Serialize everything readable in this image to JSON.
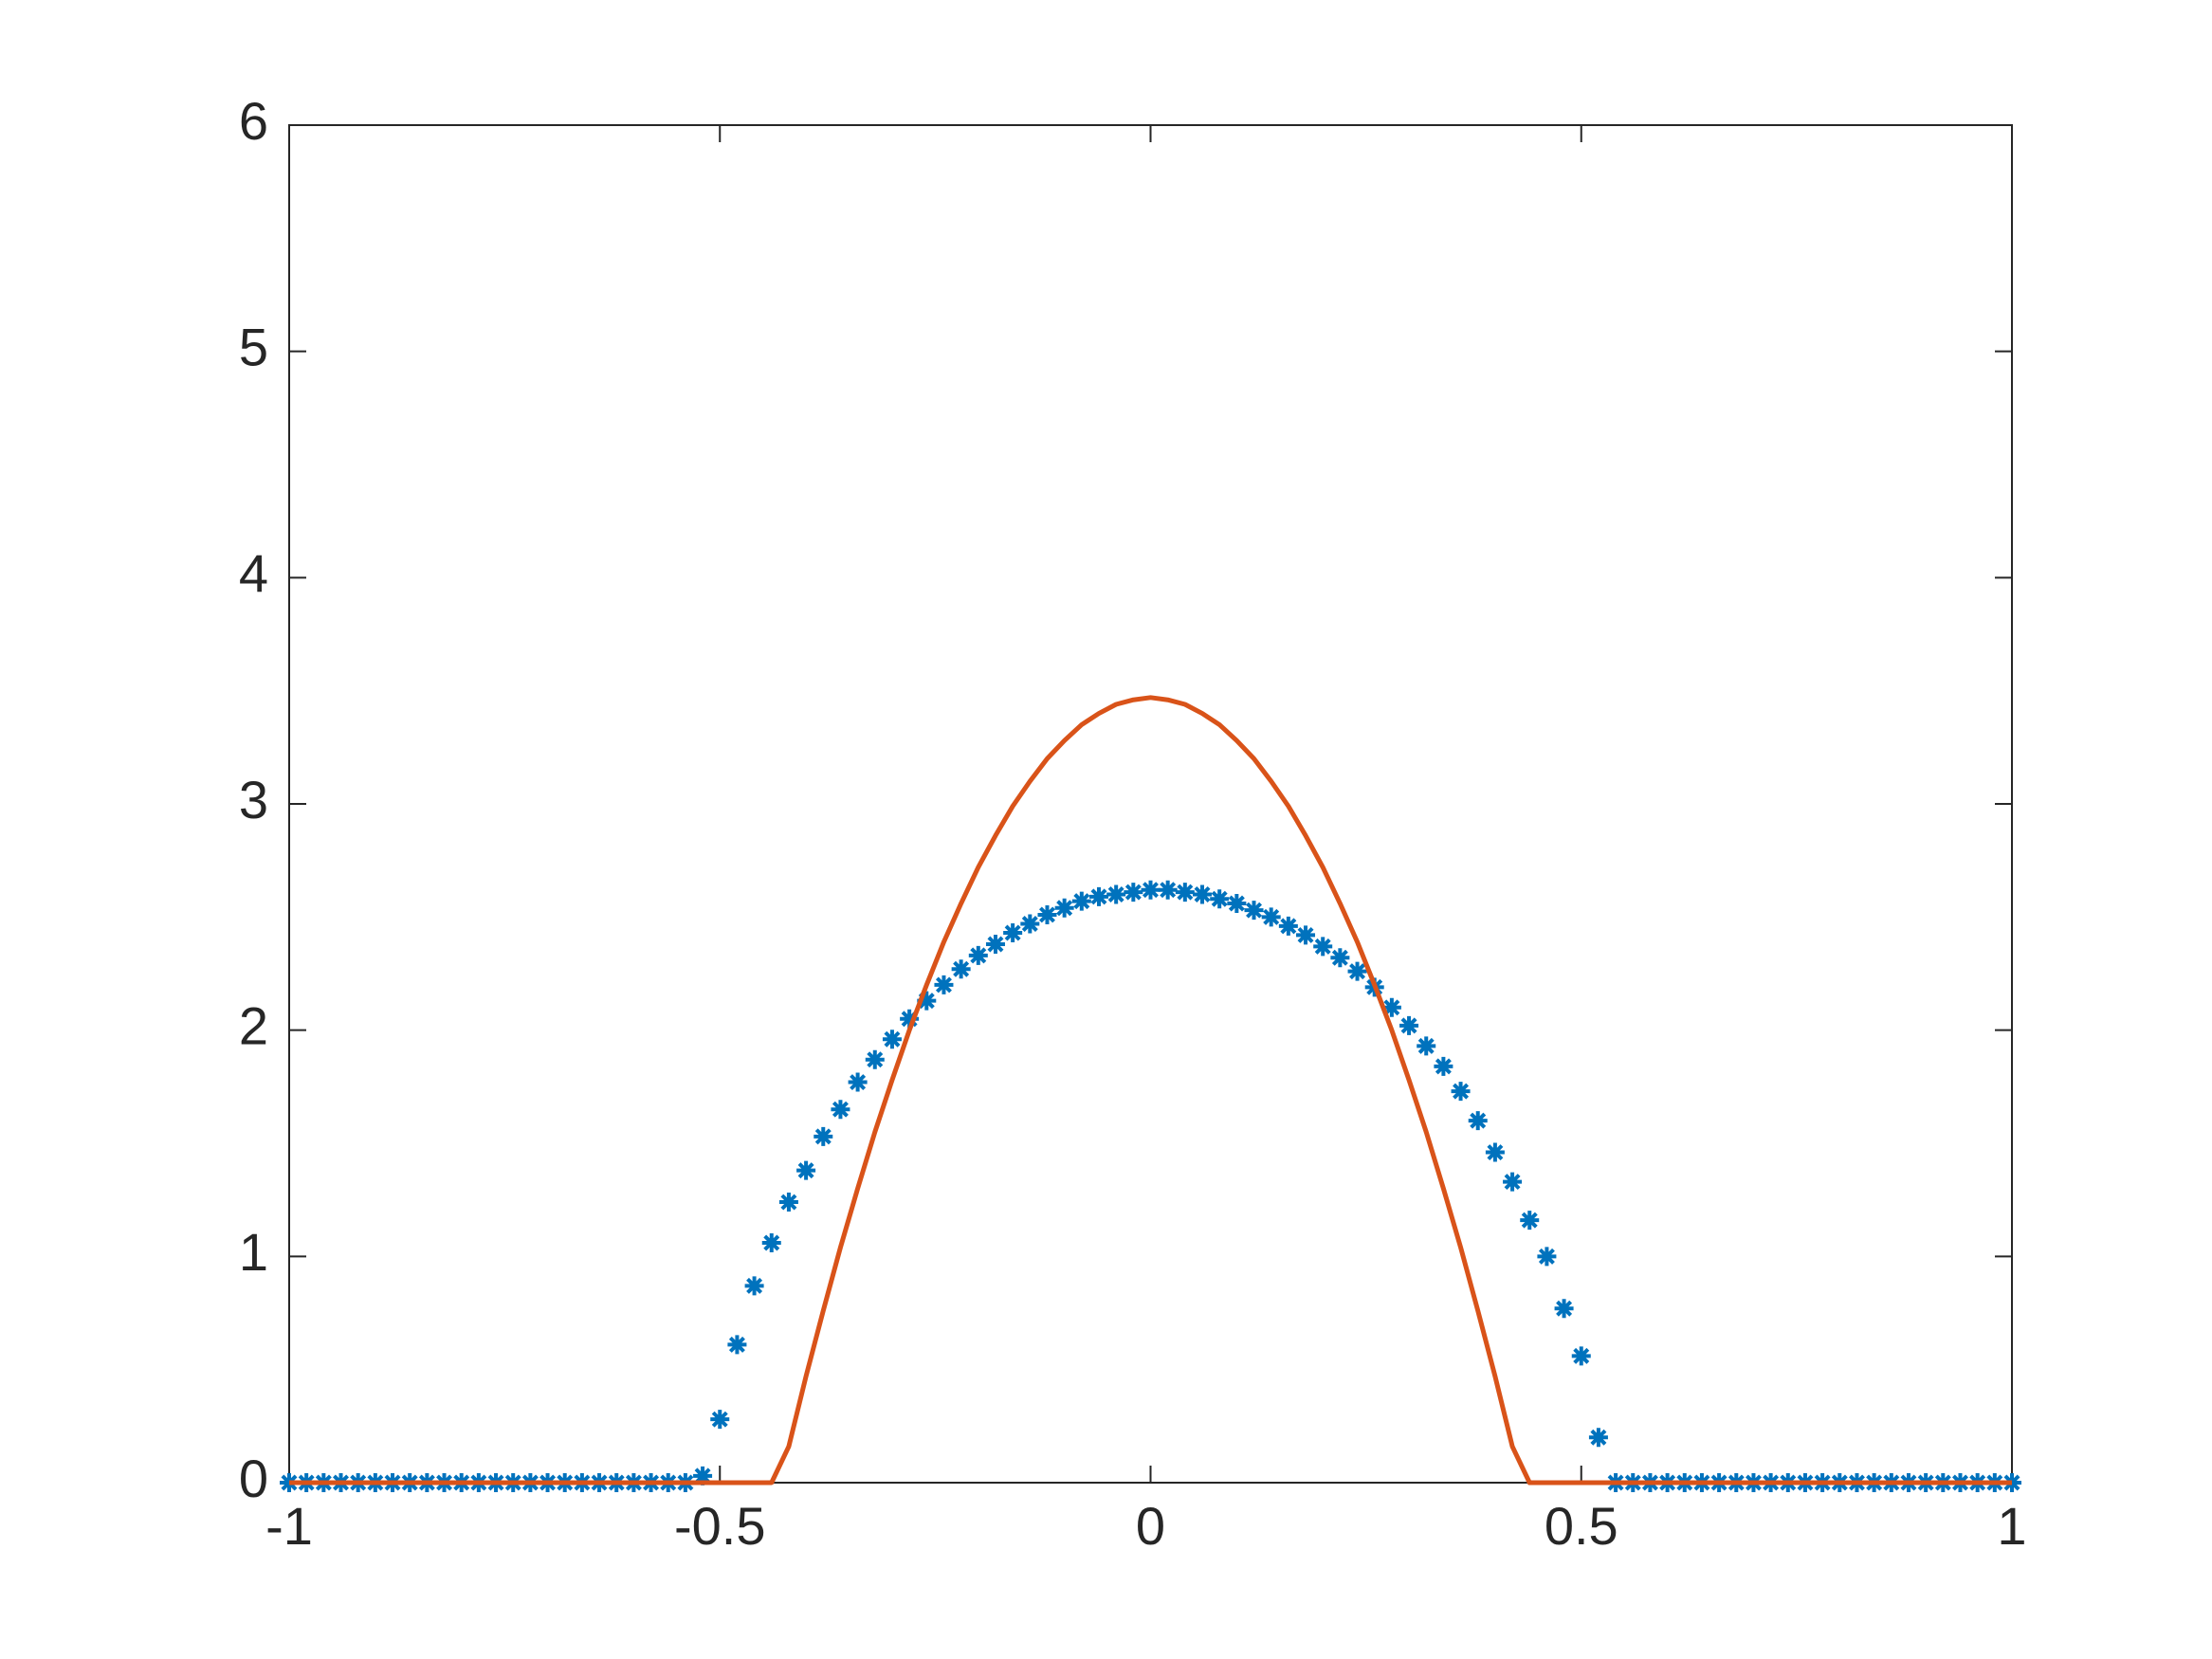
{
  "chart_data": {
    "type": "line",
    "x": [
      -1,
      -0.98,
      -0.96,
      -0.94,
      -0.92,
      -0.9,
      -0.88,
      -0.86,
      -0.84,
      -0.82,
      -0.8,
      -0.78,
      -0.76,
      -0.74,
      -0.72,
      -0.7,
      -0.68,
      -0.66,
      -0.64,
      -0.62,
      -0.6,
      -0.58,
      -0.56,
      -0.54,
      -0.52,
      -0.5,
      -0.48,
      -0.46,
      -0.44,
      -0.42,
      -0.4,
      -0.38,
      -0.36,
      -0.34,
      -0.32,
      -0.3,
      -0.28,
      -0.26,
      -0.24,
      -0.22,
      -0.2,
      -0.18,
      -0.16,
      -0.14,
      -0.12,
      -0.1,
      -0.08,
      -0.06,
      -0.04,
      -0.02,
      0,
      0.02,
      0.04,
      0.06,
      0.08,
      0.1,
      0.12,
      0.14,
      0.16,
      0.18,
      0.2,
      0.22,
      0.24,
      0.26,
      0.28,
      0.3,
      0.32,
      0.34,
      0.36,
      0.38,
      0.4,
      0.42,
      0.44,
      0.46,
      0.48,
      0.5,
      0.52,
      0.54,
      0.56,
      0.58,
      0.6,
      0.62,
      0.64,
      0.66,
      0.68,
      0.7,
      0.72,
      0.74,
      0.76,
      0.78,
      0.8,
      0.82,
      0.84,
      0.86,
      0.88,
      0.9,
      0.92,
      0.94,
      0.96,
      0.98,
      1
    ],
    "series": [
      {
        "style": "markers",
        "color": "#0072bd",
        "values": [
          0,
          0,
          0,
          0,
          0,
          0,
          0,
          0,
          0,
          0,
          0,
          0,
          0,
          0,
          0,
          0,
          0,
          0,
          0,
          0,
          0,
          0,
          0,
          0,
          0.03,
          0.28,
          0.61,
          0.87,
          1.06,
          1.24,
          1.38,
          1.53,
          1.65,
          1.77,
          1.87,
          1.96,
          2.05,
          2.13,
          2.2,
          2.27,
          2.33,
          2.38,
          2.43,
          2.47,
          2.51,
          2.54,
          2.57,
          2.59,
          2.6,
          2.61,
          2.62,
          2.62,
          2.61,
          2.6,
          2.58,
          2.56,
          2.53,
          2.5,
          2.46,
          2.42,
          2.37,
          2.32,
          2.26,
          2.19,
          2.1,
          2.02,
          1.93,
          1.84,
          1.73,
          1.6,
          1.46,
          1.33,
          1.16,
          1,
          0.77,
          0.56,
          0.2,
          0,
          0,
          0,
          0,
          0,
          0,
          0,
          0,
          0,
          0,
          0,
          0,
          0,
          0,
          0,
          0,
          0,
          0,
          0,
          0,
          0,
          0,
          0,
          0
        ]
      },
      {
        "style": "line",
        "color": "#d95319",
        "values": [
          0,
          0,
          0,
          0,
          0,
          0,
          0,
          0,
          0,
          0,
          0,
          0,
          0,
          0,
          0,
          0,
          0,
          0,
          0,
          0,
          0,
          0,
          0,
          0,
          0,
          0,
          0,
          0,
          0,
          0.16,
          0.47,
          0.76,
          1.04,
          1.3,
          1.55,
          1.78,
          2,
          2.2,
          2.39,
          2.56,
          2.72,
          2.86,
          2.99,
          3.1,
          3.2,
          3.28,
          3.35,
          3.4,
          3.44,
          3.46,
          3.47,
          3.46,
          3.44,
          3.4,
          3.35,
          3.28,
          3.2,
          3.1,
          2.99,
          2.86,
          2.72,
          2.56,
          2.39,
          2.2,
          2,
          1.78,
          1.55,
          1.3,
          1.04,
          0.76,
          0.47,
          0.16,
          0,
          0,
          0,
          0,
          0,
          0,
          0,
          0,
          0,
          0,
          0,
          0,
          0,
          0,
          0,
          0,
          0,
          0,
          0,
          0,
          0,
          0,
          0,
          0,
          0,
          0,
          0,
          0,
          0
        ]
      }
    ],
    "xlim": [
      -1,
      1
    ],
    "xticks": [
      -1,
      -0.5,
      0,
      0.5,
      1
    ],
    "ylim": [
      0,
      6
    ],
    "yticks": [
      0,
      1,
      2,
      3,
      4,
      5,
      6
    ],
    "grid": false
  }
}
